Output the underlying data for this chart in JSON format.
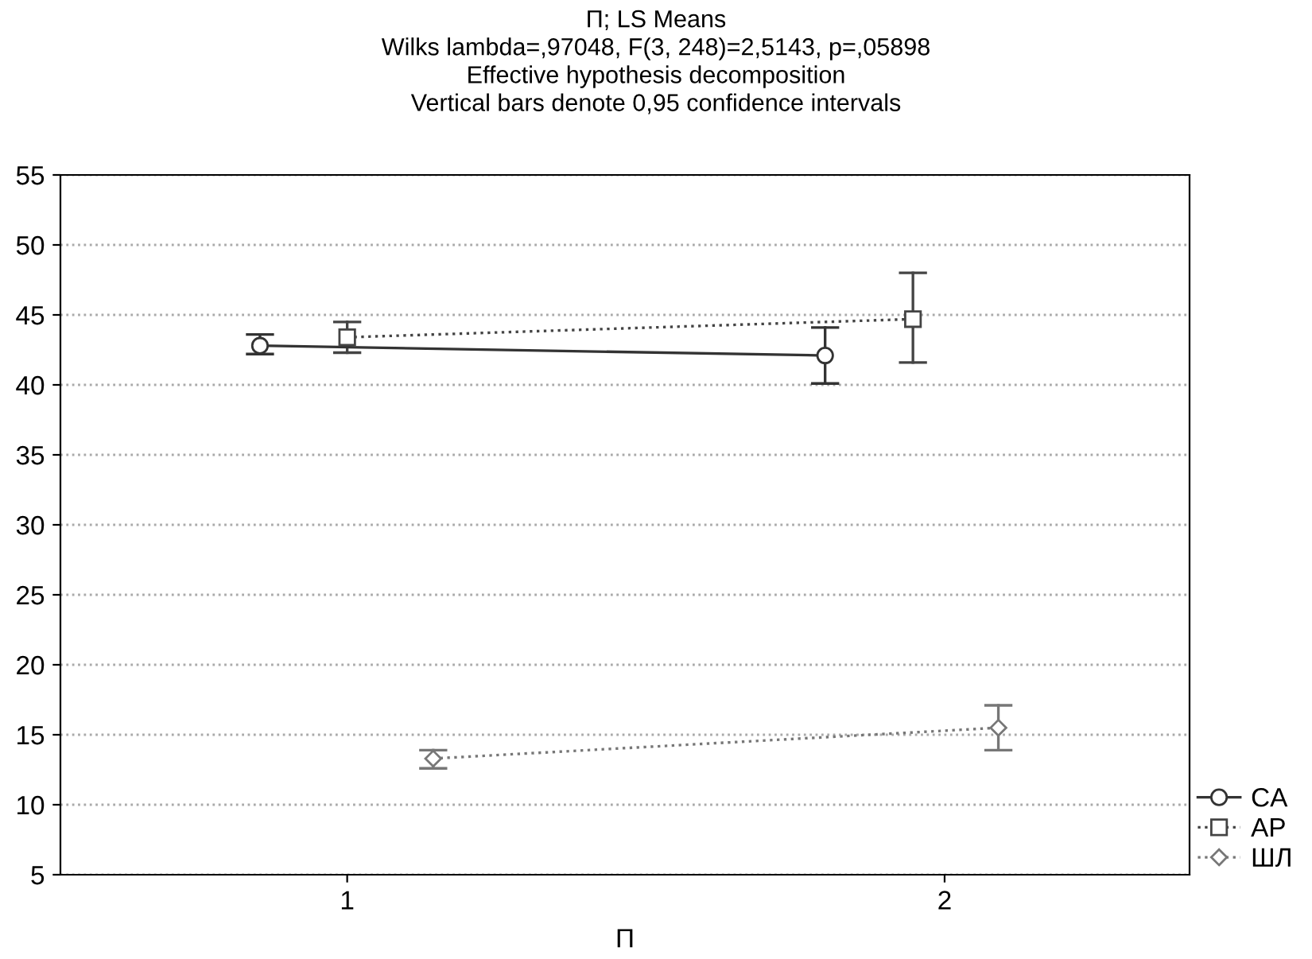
{
  "chart_data": {
    "type": "line",
    "title": "П; LS Means\nWilks lambda=,97048, F(3, 248)=2,5143, p=,05898\nEffective hypothesis decomposition\nVertical bars denote 0,95 confidence intervals",
    "xlabel": "П",
    "xlim": [
      0.52,
      2.41
    ],
    "xticks": [
      1,
      2
    ],
    "ylim": [
      5,
      55
    ],
    "yticks": [
      5,
      10,
      15,
      20,
      25,
      30,
      35,
      40,
      45,
      50,
      55
    ],
    "grid": "y",
    "legend": "bottom right",
    "series": [
      {
        "name": "CA",
        "color": "#333333",
        "x": [
          0.854,
          1.8
        ],
        "values": [
          42.8,
          42.1
        ],
        "errors": [
          [
            42.2,
            43.6
          ],
          [
            40.1,
            44.1
          ]
        ],
        "marker": "circle",
        "line_style": "solid"
      },
      {
        "name": "AP",
        "color": "#444444",
        "x": [
          1.0,
          1.947
        ],
        "values": [
          43.4,
          44.7
        ],
        "errors": [
          [
            42.3,
            44.5
          ],
          [
            41.6,
            48.0
          ]
        ],
        "marker": "square",
        "line_style": "dotted"
      },
      {
        "name": "ШЛ",
        "color": "#777777",
        "x": [
          1.144,
          2.09
        ],
        "values": [
          13.3,
          15.5
        ],
        "errors": [
          [
            12.6,
            13.9
          ],
          [
            13.9,
            17.1
          ]
        ],
        "marker": "diamond",
        "line_style": "dotted"
      }
    ]
  }
}
